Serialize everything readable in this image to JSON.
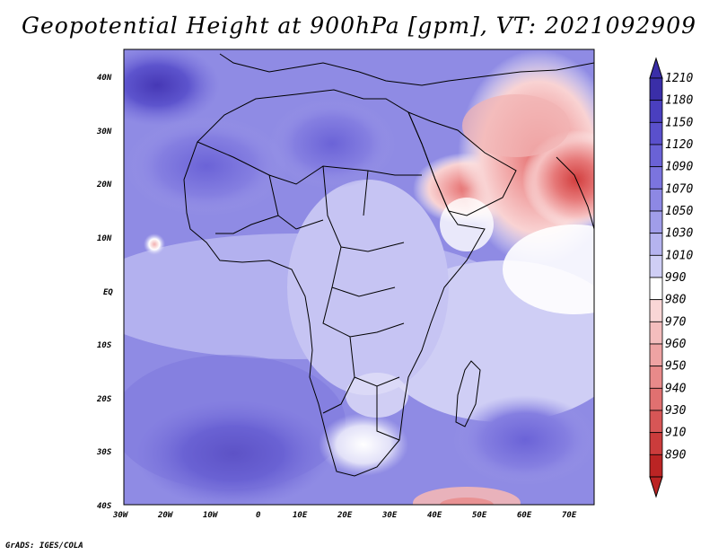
{
  "title": "Geopotential Height at 900hPa [gpm], VT: 2021092909",
  "credit": "GrADS: IGES/COLA",
  "lat_ticks": [
    "40N",
    "30N",
    "20N",
    "10N",
    "EQ",
    "10S",
    "20S",
    "30S",
    "40S"
  ],
  "lon_ticks": [
    "30W",
    "20W",
    "10W",
    "0",
    "10E",
    "20E",
    "30E",
    "40E",
    "50E",
    "60E",
    "70E"
  ],
  "colorbar": {
    "levels": [
      "1210",
      "1180",
      "1150",
      "1120",
      "1090",
      "1070",
      "1050",
      "1030",
      "1010",
      "990",
      "980",
      "970",
      "960",
      "950",
      "940",
      "930",
      "910",
      "890"
    ],
    "colors": [
      "#3a2ea8",
      "#4a3fbf",
      "#5a50cc",
      "#6a62d6",
      "#7b74de",
      "#8d88e4",
      "#a09de9",
      "#b5b3ef",
      "#cfcef5",
      "#ffffff",
      "#f9d6d6",
      "#f4bdbd",
      "#eea3a3",
      "#e88a8a",
      "#e07070",
      "#d75656",
      "#cb3c3c",
      "#bb2424"
    ]
  }
}
